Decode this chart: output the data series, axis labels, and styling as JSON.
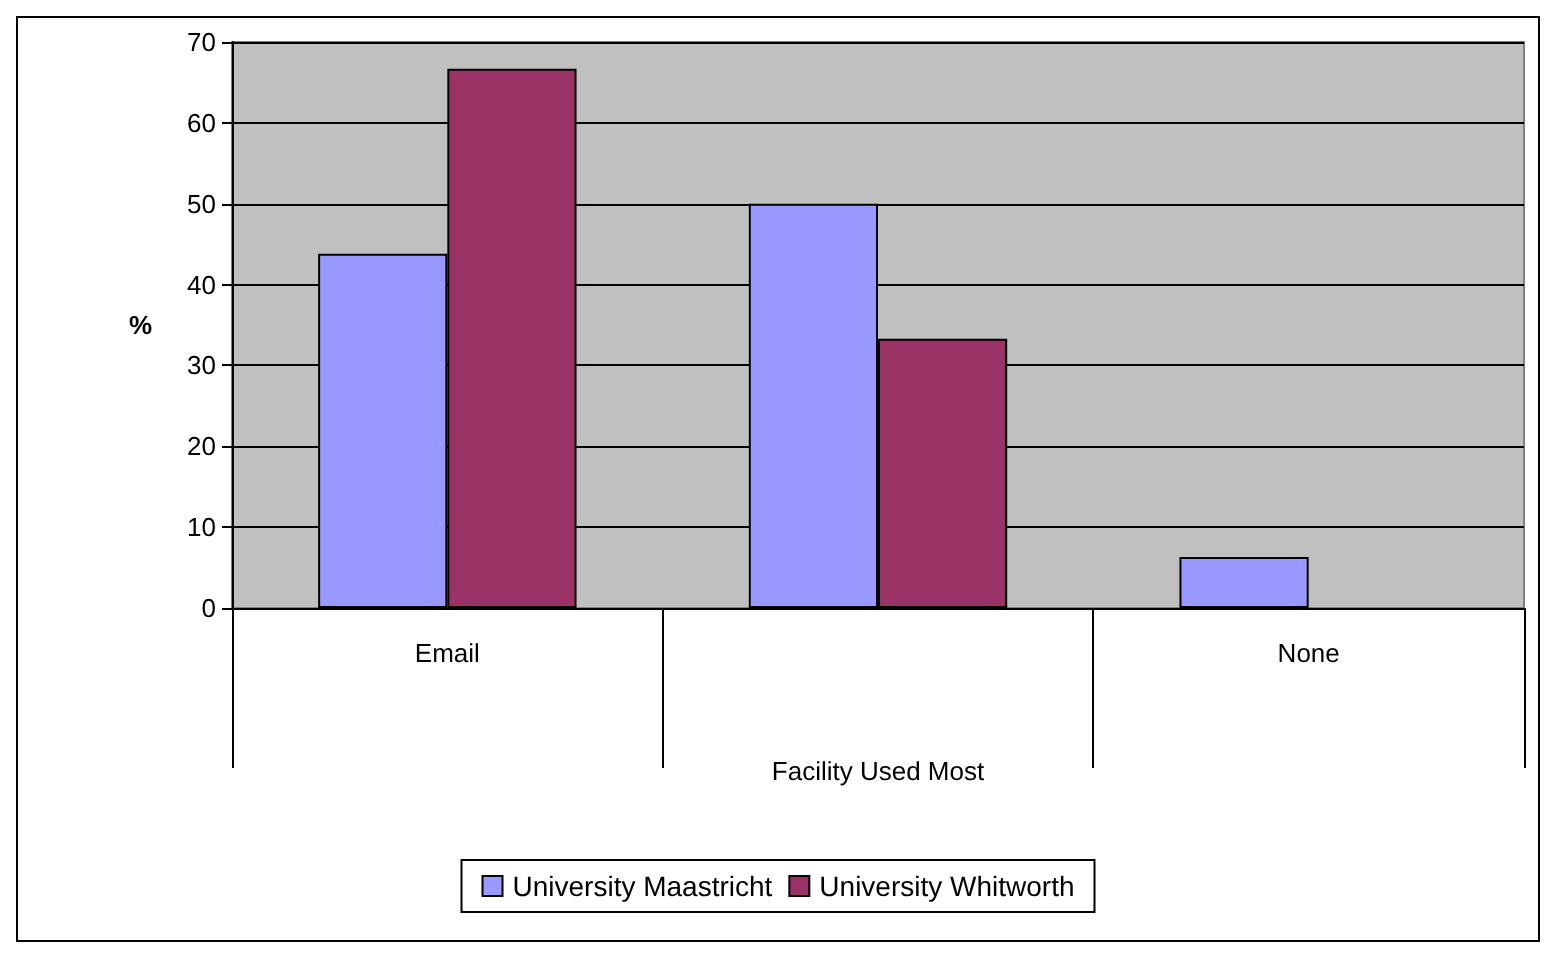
{
  "chart_data": {
    "type": "bar",
    "ylabel": "%",
    "xlabel": "Facility Used Most",
    "categories": [
      "Email",
      null,
      "None"
    ],
    "series": [
      {
        "name": "University Maastricht",
        "color": "#9999ff",
        "values": [
          43.8,
          50,
          6.3
        ]
      },
      {
        "name": "University Whitworth",
        "color": "#993366",
        "values": [
          66.7,
          33.3,
          0
        ]
      }
    ],
    "ylim": [
      0,
      70
    ],
    "yticks": [
      0,
      10,
      20,
      30,
      40,
      50,
      60,
      70
    ],
    "grid": "y",
    "legend": "bottom"
  }
}
